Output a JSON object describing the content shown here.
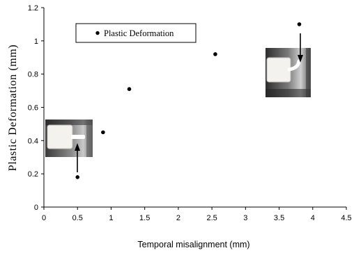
{
  "chart_data": {
    "type": "scatter",
    "xlabel": "Temporal misalignment (mm)",
    "ylabel": "Plastic Deformation (mm)",
    "xlim": [
      0,
      4.5
    ],
    "ylim": [
      0,
      1.2
    ],
    "x_ticks": [
      "0",
      "0.5",
      "1",
      "1.5",
      "2",
      "2.5",
      "3",
      "3.5",
      "4",
      "4.5"
    ],
    "y_ticks": [
      "0",
      "0.2",
      "0.4",
      "0.6",
      "0.8",
      "1",
      "1.2"
    ],
    "grid": false,
    "legend_position": "top-left",
    "series": [
      {
        "name": "Plastic Deformation",
        "marker": "filled-circle",
        "color": "#000000",
        "points": [
          {
            "x": 0.5,
            "y": 0.18
          },
          {
            "x": 0.88,
            "y": 0.45
          },
          {
            "x": 1.27,
            "y": 0.71
          },
          {
            "x": 2.55,
            "y": 0.92
          },
          {
            "x": 3.8,
            "y": 1.1
          }
        ]
      }
    ],
    "insets": [
      {
        "name": "inset-photo-low",
        "depicts": "deformed specimen photo",
        "arrow_direction": "up"
      },
      {
        "name": "inset-photo-high",
        "depicts": "deformed specimen photo",
        "arrow_direction": "down"
      }
    ]
  }
}
